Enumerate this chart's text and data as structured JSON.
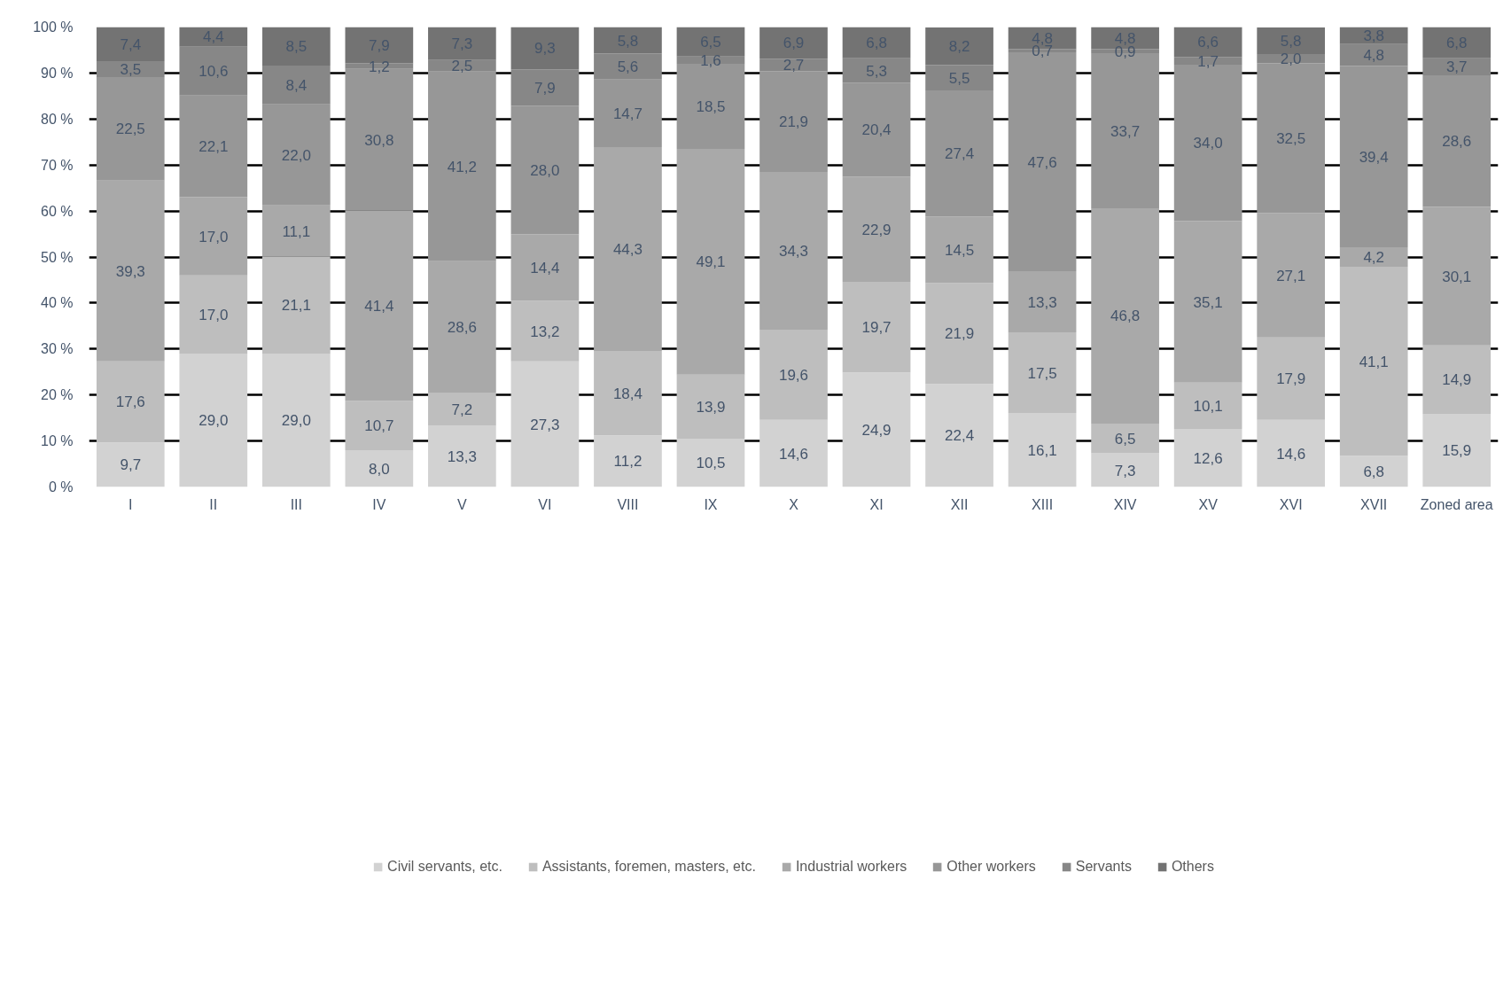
{
  "chart_data": {
    "type": "bar",
    "stacked": true,
    "categories": [
      "I",
      "II",
      "III",
      "IV",
      "V",
      "VI",
      "VIII",
      "IX",
      "X",
      "XI",
      "XII",
      "XIII",
      "XIV",
      "XV",
      "XVI",
      "XVII",
      "Zoned area"
    ],
    "series": [
      {
        "name": "Civil servants, etc.",
        "color": "#d2d2d2",
        "values": [
          9.7,
          29.0,
          29.0,
          8.0,
          13.3,
          27.3,
          11.2,
          10.5,
          14.6,
          24.9,
          22.4,
          16.1,
          7.3,
          12.6,
          14.6,
          6.8,
          15.9
        ],
        "value_labels": [
          "9,7",
          "29,0",
          "29,0",
          "8,0",
          "13,3",
          "27,3",
          "11,2",
          "10,5",
          "14,6",
          "24,9",
          "22,4",
          "16,1",
          "7,3",
          "12,6",
          "14,6",
          "6,8",
          "15,9"
        ]
      },
      {
        "name": "Assistants, foremen, masters, etc.",
        "color": "#bebebe",
        "values": [
          17.6,
          17.0,
          21.1,
          10.7,
          7.2,
          13.2,
          18.4,
          13.9,
          19.6,
          19.7,
          21.9,
          17.5,
          6.5,
          10.1,
          17.9,
          41.1,
          14.9
        ],
        "value_labels": [
          "17,6",
          "17,0",
          "21,1",
          "10,7",
          "7,2",
          "13,2",
          "18,4",
          "13,9",
          "19,6",
          "19,7",
          "21,9",
          "17,5",
          "6,5",
          "10,1",
          "17,9",
          "41,1",
          "14,9"
        ]
      },
      {
        "name": "Industrial workers",
        "color": "#a9a9a9",
        "values": [
          39.3,
          17.0,
          11.1,
          41.4,
          28.6,
          14.4,
          44.3,
          49.1,
          34.3,
          22.9,
          14.5,
          13.3,
          46.8,
          35.1,
          27.1,
          4.2,
          30.1
        ],
        "value_labels": [
          "39,3",
          "17,0",
          "11,1",
          "41,4",
          "28,6",
          "14,4",
          "44,3",
          "49,1",
          "34,3",
          "22,9",
          "14,5",
          "13,3",
          "46,8",
          "35,1",
          "27,1",
          "4,2",
          "30,1"
        ]
      },
      {
        "name": "Other workers",
        "color": "#979797",
        "values": [
          22.5,
          22.1,
          22.0,
          30.8,
          41.2,
          28.0,
          14.7,
          18.5,
          21.9,
          20.4,
          27.4,
          47.6,
          33.7,
          34.0,
          32.5,
          39.4,
          28.6
        ],
        "value_labels": [
          "22,5",
          "22,1",
          "22,0",
          "30,8",
          "41,2",
          "28,0",
          "14,7",
          "18,5",
          "21,9",
          "20,4",
          "27,4",
          "47,6",
          "33,7",
          "34,0",
          "32,5",
          "39,4",
          "28,6"
        ]
      },
      {
        "name": "Servants",
        "color": "#878787",
        "values": [
          3.5,
          10.6,
          8.4,
          1.2,
          2.5,
          7.9,
          5.6,
          1.6,
          2.7,
          5.3,
          5.5,
          0.7,
          0.9,
          1.7,
          2.0,
          4.8,
          3.7
        ],
        "value_labels": [
          "3,5",
          "10,6",
          "8,4",
          "1,2",
          "2,5",
          "7,9",
          "5,6",
          "1,6",
          "2,7",
          "5,3",
          "5,5",
          "0,7",
          "0,9",
          "1,7",
          "2,0",
          "4,8",
          "3,7"
        ]
      },
      {
        "name": "Others",
        "color": "#737373",
        "values": [
          7.4,
          4.4,
          8.5,
          7.9,
          7.3,
          9.3,
          5.8,
          6.5,
          6.9,
          6.8,
          8.2,
          4.8,
          4.8,
          6.6,
          5.8,
          3.8,
          6.8
        ],
        "value_labels": [
          "7,4",
          "4,4",
          "8,5",
          "7,9",
          "7,3",
          "9,3",
          "5,8",
          "6,5",
          "6,9",
          "6,8",
          "8,2",
          "4,8",
          "4,8",
          "6,6",
          "5,8",
          "3,8",
          "6,8"
        ]
      }
    ],
    "ylim": [
      0,
      100
    ],
    "yticks": [
      {
        "value": 0,
        "label": "0 %"
      },
      {
        "value": 10,
        "label": "10 %"
      },
      {
        "value": 20,
        "label": "20 %"
      },
      {
        "value": 30,
        "label": "30 %"
      },
      {
        "value": 40,
        "label": "40 %"
      },
      {
        "value": 50,
        "label": "50 %"
      },
      {
        "value": 60,
        "label": "60 %"
      },
      {
        "value": 70,
        "label": "70 %"
      },
      {
        "value": 80,
        "label": "80 %"
      },
      {
        "value": 90,
        "label": "90 %"
      },
      {
        "value": 100,
        "label": "100 %"
      }
    ],
    "grid": "y",
    "legend": "bottom"
  }
}
